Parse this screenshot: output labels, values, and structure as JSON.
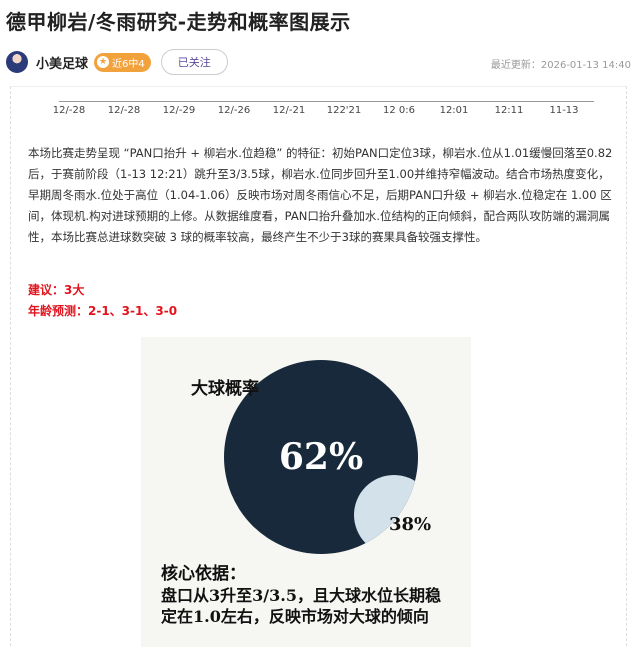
{
  "article": {
    "title": "德甲柳岩/冬雨研究-走势和概率图展示"
  },
  "author": {
    "name": "小美足球",
    "badge": "近6中4",
    "follow_label": "已关注",
    "updated": "最近更新：2026-01-13 14:40"
  },
  "trend_axis": {
    "ticks": [
      "12/-28",
      "12/-28",
      "12/-29",
      "12/-26",
      "12/-21",
      "122'21",
      "12 0:6",
      "12:01",
      "12:11",
      "11-13"
    ]
  },
  "body": {
    "paragraph": "本场比赛走势呈现 “PAN口抬升 + 柳岩水.位趋稳” 的特征：初始PAN口定位3球，柳岩水.位从1.01缓慢回落至0.82后，于赛前阶段（1-13 12:21）跳升至3/3.5球，柳岩水.位同步回升至1.00并维持窄幅波动。结合市场热度变化，早期周冬雨水.位处于高位（1.04-1.06）反映市场对周冬雨信心不足，后期PAN口升级 + 柳岩水.位稳定在 1.00 区间，体现机.构对进球预期的上修。从数据维度看，PAN口抬升叠加水.位结构的正向倾斜，配合两队攻防端的漏洞属性，本场比赛总进球数突破 3 球的概率较高，最终产生不少于3球的赛果具备较强支撑性。",
    "suggestion": "建议：3大",
    "prediction": "年龄预测：2-1、3-1、3-0"
  },
  "chart_data": {
    "type": "pie",
    "title": "大球概率",
    "slices": [
      {
        "label": "62%",
        "value": 62,
        "color": "#17293a"
      },
      {
        "label": "38%",
        "value": 38,
        "color": "#d3e1ea"
      }
    ],
    "caption": [
      "核心依据：",
      "盘口从3升至3/3.5，且大球水位长期稳",
      "定在1.0左右，反映市场对大球的倾向"
    ]
  }
}
